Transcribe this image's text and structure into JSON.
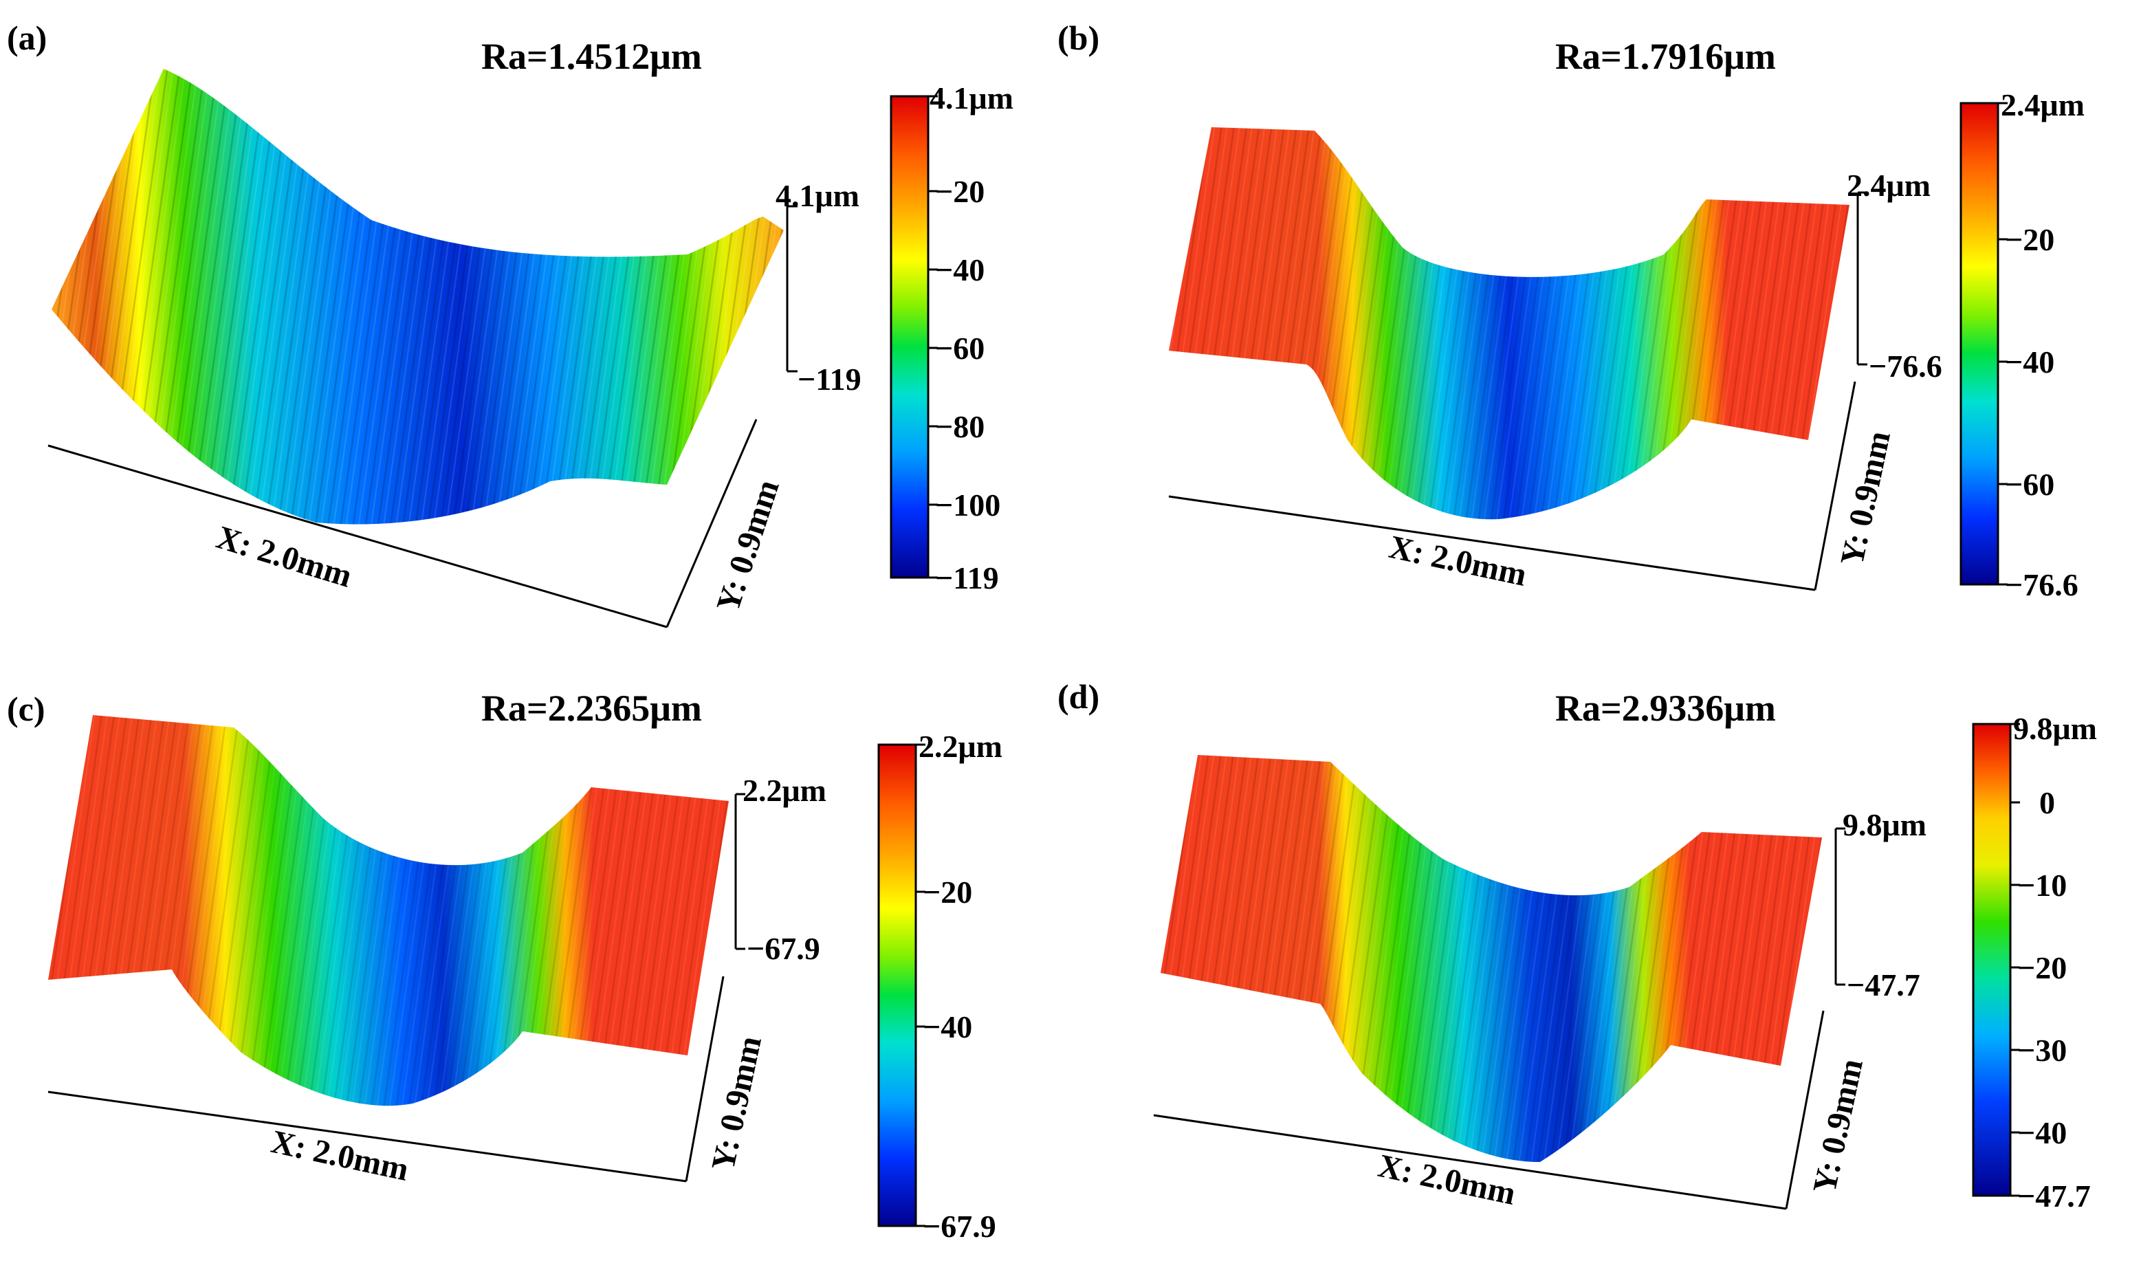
{
  "panels": [
    {
      "id": "a",
      "label": "(a)",
      "ra": "Ra=1.4512μm",
      "colorbar": {
        "top_label": "4.1μm",
        "ticks": [
          "−20",
          "−40",
          "−60",
          "−80",
          "−100"
        ],
        "bottom_label": "119"
      },
      "z_axis": {
        "top": "4.1μm",
        "bottom": "119"
      },
      "x_label": "X: 2.0mm",
      "y_label": "Y: 0.9mm"
    },
    {
      "id": "b",
      "label": "(b)",
      "ra": "Ra=1.7916μm",
      "colorbar": {
        "top_label": "2.4μm",
        "ticks": [
          "−20",
          "−40",
          "−60"
        ],
        "bottom_label": "76.6"
      },
      "z_axis": {
        "top": "2.4μm",
        "bottom": "76.6"
      },
      "x_label": "X: 2.0mm",
      "y_label": "Y: 0.9mm"
    },
    {
      "id": "c",
      "label": "(c)",
      "ra": "Ra=2.2365μm",
      "colorbar": {
        "top_label": "2.2μm",
        "ticks": [
          "−20",
          "−40"
        ],
        "bottom_label": "67.9"
      },
      "z_axis": {
        "top": "2.2μm",
        "bottom": "67.9"
      },
      "x_label": "X: 2.0mm",
      "y_label": "Y: 0.9mm"
    },
    {
      "id": "d",
      "label": "(d)",
      "ra": "Ra=2.9336μm",
      "colorbar": {
        "top_label": "9.8μm",
        "ticks": [
          "0",
          "−10",
          "−20",
          "−30",
          "−40"
        ],
        "bottom_label": "47.7"
      },
      "z_axis": {
        "top": "9.8μm",
        "bottom": "47.7"
      },
      "x_label": "X: 2.0mm",
      "y_label": "Y: 0.9mm"
    }
  ],
  "colors": {
    "jet": [
      "#00008f",
      "#0022ff",
      "#0090ff",
      "#00d8ff",
      "#20f0c0",
      "#00e000",
      "#c8f000",
      "#ffff00",
      "#ffb000",
      "#ff5a00",
      "#e00000"
    ],
    "plateau_orange": "#ffa31a",
    "plateau_red": "#f53b1f"
  }
}
